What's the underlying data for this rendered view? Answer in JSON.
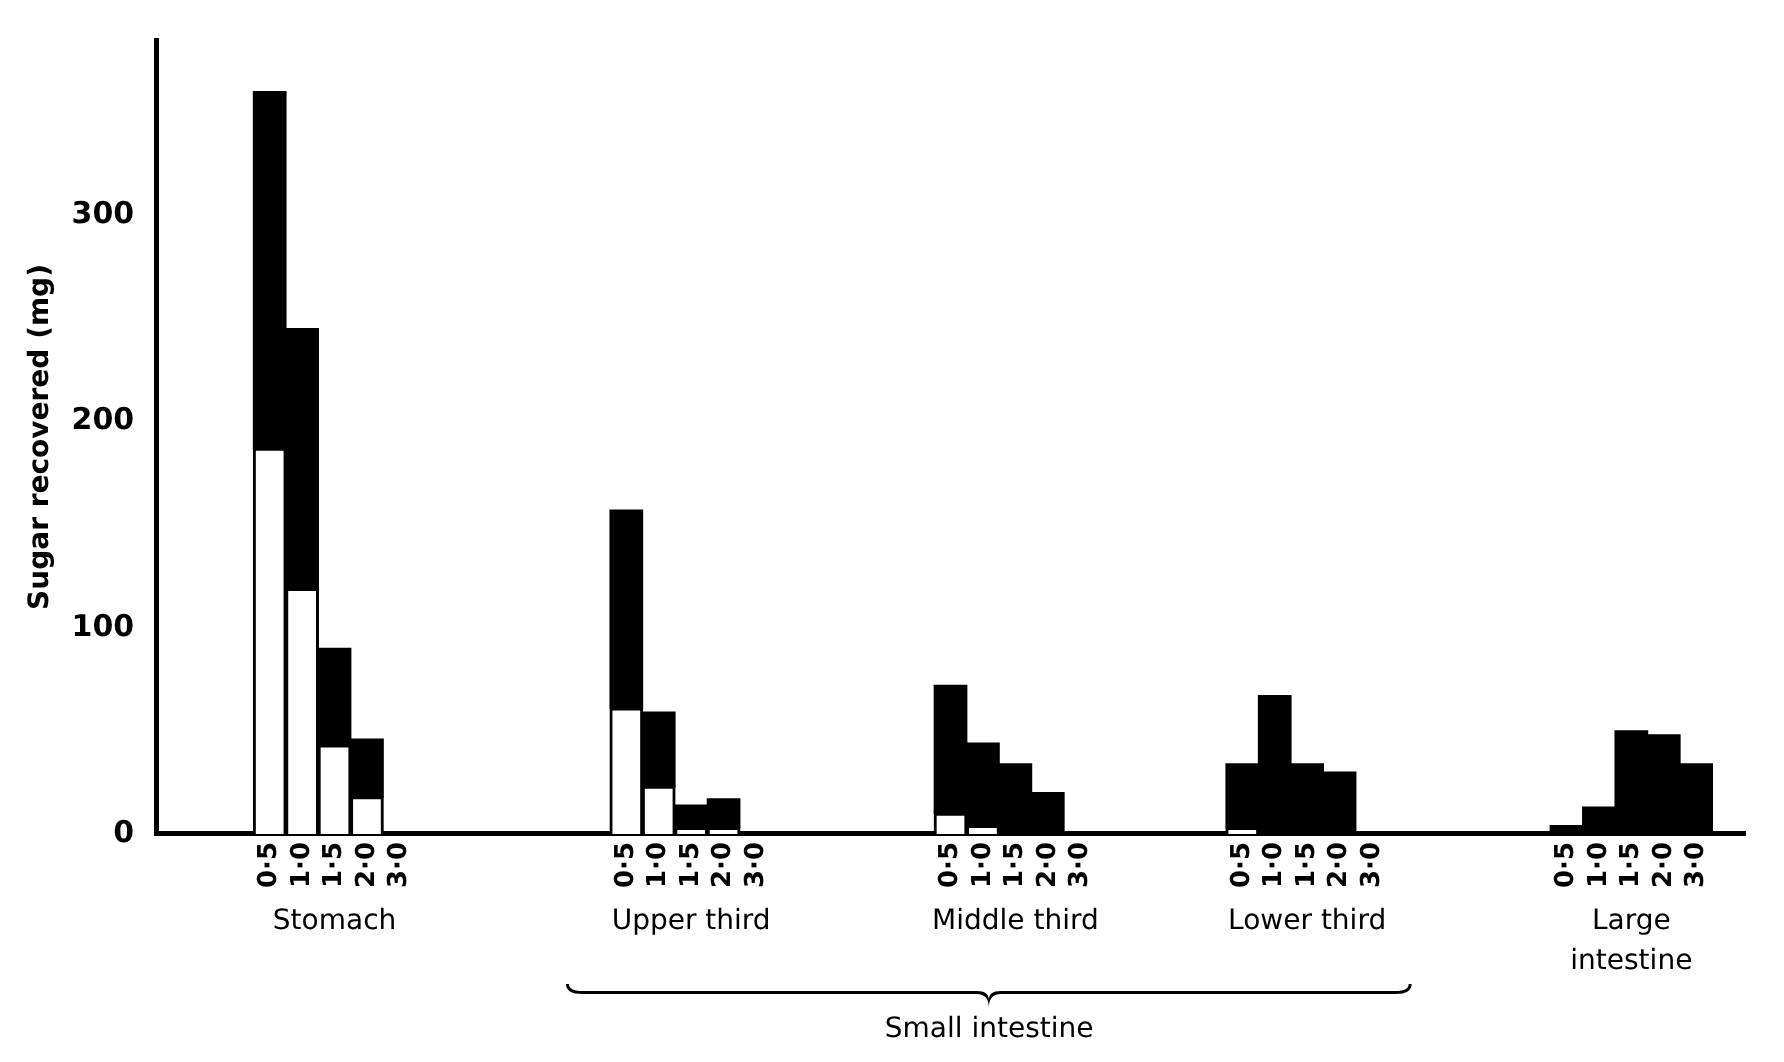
{
  "chart_data": {
    "type": "bar",
    "stacked": true,
    "ylabel": "Sugar recovered (mg)",
    "categories": [
      null,
      null,
      null,
      "0·5",
      "1·0",
      "1·5",
      "2·0",
      "3·0",
      null,
      null,
      null,
      null,
      null,
      null,
      "0·5",
      "1·0",
      "1·5",
      "2·0",
      "3·0",
      null,
      null,
      null,
      null,
      null,
      "0·5",
      "1·0",
      "1·5",
      "2·0",
      "3·0",
      null,
      null,
      null,
      null,
      "0·5",
      "1·0",
      "1·5",
      "2·0",
      "3·0",
      null,
      null,
      null,
      null,
      null,
      "0·5",
      "1·0",
      "1·5",
      "2·0",
      "3·0",
      null
    ],
    "series": [
      {
        "color": "#ffffff",
        "values": [
          null,
          null,
          null,
          187,
          119,
          43,
          18,
          0,
          null,
          null,
          null,
          null,
          null,
          null,
          61,
          23,
          3,
          3,
          0,
          null,
          null,
          null,
          null,
          null,
          10,
          4,
          0,
          0,
          0,
          null,
          null,
          null,
          null,
          3,
          0,
          0,
          0,
          0,
          null,
          null,
          null,
          null,
          null,
          0,
          0,
          0,
          0,
          0,
          null
        ]
      },
      {
        "color": "#000000",
        "values": [
          null,
          null,
          null,
          173,
          126,
          47,
          28,
          0,
          null,
          null,
          null,
          null,
          null,
          null,
          96,
          36,
          11,
          14,
          0,
          null,
          null,
          null,
          null,
          null,
          62,
          40,
          34,
          20,
          0,
          null,
          null,
          null,
          null,
          31,
          67,
          34,
          30,
          0,
          null,
          null,
          null,
          null,
          null,
          4,
          13,
          50,
          48,
          34,
          null
        ]
      }
    ],
    "ylim": [
      0,
      385
    ],
    "yticks": [
      0,
      100,
      200,
      300
    ],
    "grid": false,
    "legend": false,
    "annotations": [
      "Stomach",
      "Upper third",
      "Middle third",
      "Lower third",
      "Large intestine",
      "Small intestine"
    ]
  }
}
